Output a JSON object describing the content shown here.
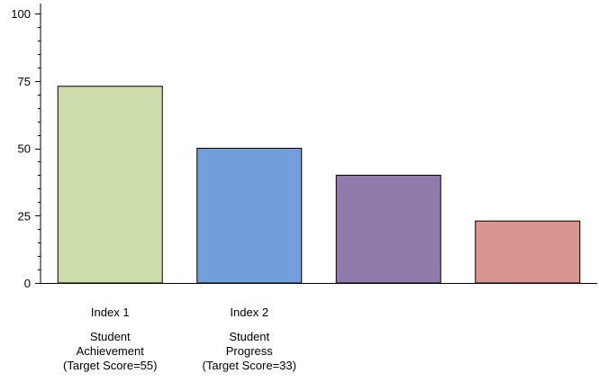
{
  "chart_data": {
    "type": "bar",
    "title": "",
    "xlabel": "",
    "ylabel": "",
    "ylim": [
      0,
      100
    ],
    "yticks": [
      0,
      25,
      50,
      75,
      100
    ],
    "grid": false,
    "categories": [
      {
        "lines": [
          "Index 1",
          "",
          "Student",
          "Achievement",
          "(Target Score=55)"
        ]
      },
      {
        "lines": [
          "Index 2",
          "",
          "Student",
          "Progress",
          "(Target Score=33)"
        ]
      },
      {
        "lines": []
      },
      {
        "lines": []
      }
    ],
    "values": [
      73,
      50,
      40,
      23
    ],
    "colors": [
      "#ccdcab",
      "#729fdc",
      "#917bad",
      "#d89690"
    ]
  }
}
